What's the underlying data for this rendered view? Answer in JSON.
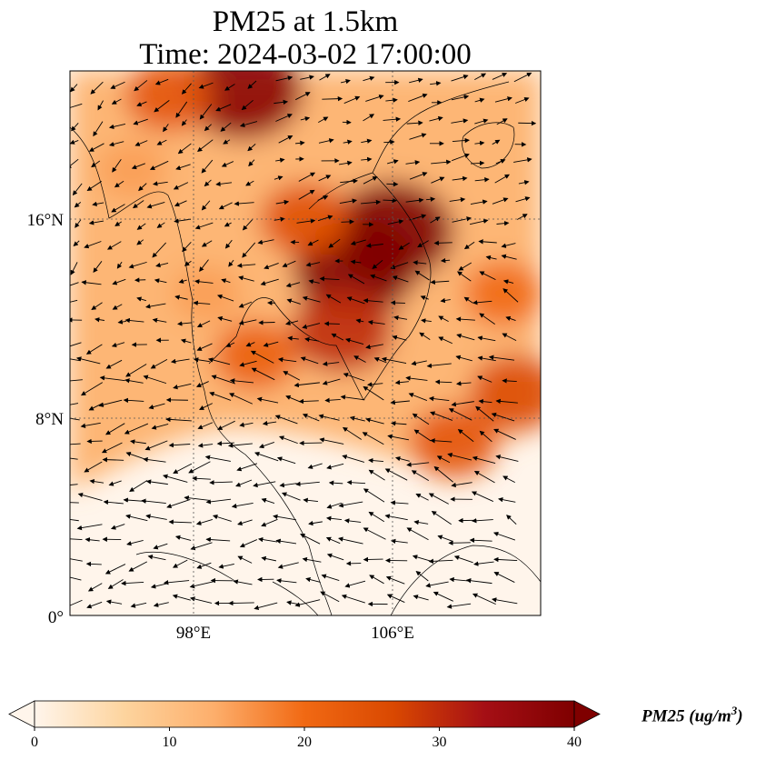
{
  "title": {
    "line1": "PM25 at 1.5km",
    "line2": "Time: 2024-03-02 17:00:00"
  },
  "chart_data": {
    "type": "heatmap",
    "variable": "PM25",
    "lon_range": [
      93,
      112
    ],
    "lat_range": [
      0,
      22
    ],
    "x_ticks": [
      {
        "value": 98,
        "label": "98°E"
      },
      {
        "value": 106,
        "label": "106°E"
      }
    ],
    "y_ticks": [
      {
        "value": 0,
        "label": "0°"
      },
      {
        "value": 8,
        "label": "8°N"
      },
      {
        "value": 16,
        "label": "16°N"
      }
    ],
    "grid": "dotted",
    "overlay": "wind vectors (quiver)",
    "hotspots": [
      {
        "lon": 104.5,
        "lat": 14.0,
        "value": 40
      },
      {
        "lon": 106.0,
        "lat": 15.5,
        "value": 40
      },
      {
        "lon": 100.0,
        "lat": 21.2,
        "value": 38
      },
      {
        "lon": 102.5,
        "lat": 16.0,
        "value": 25
      },
      {
        "lon": 104.0,
        "lat": 11.5,
        "value": 30
      },
      {
        "lon": 97.0,
        "lat": 21.0,
        "value": 24
      },
      {
        "lon": 100.5,
        "lat": 10.5,
        "value": 22
      },
      {
        "lon": 111.0,
        "lat": 9.0,
        "value": 26
      },
      {
        "lon": 108.5,
        "lat": 7.0,
        "value": 24
      },
      {
        "lon": 95.5,
        "lat": 18.0,
        "value": 15
      },
      {
        "lon": 98.5,
        "lat": 13.0,
        "value": 15
      },
      {
        "lon": 110.5,
        "lat": 13.0,
        "value": 20
      }
    ],
    "colorbar": {
      "label": "PM25 (ug/m",
      "label_sup": "3",
      "label_end": ")",
      "min": 0,
      "max": 40,
      "extend": "both",
      "ticks": [
        "0",
        "10",
        "20",
        "30",
        "40"
      ],
      "colormap": [
        "#fff5eb",
        "#fdd49e",
        "#fdae6b",
        "#f16913",
        "#d94801",
        "#a50f15",
        "#7f0000"
      ]
    }
  }
}
